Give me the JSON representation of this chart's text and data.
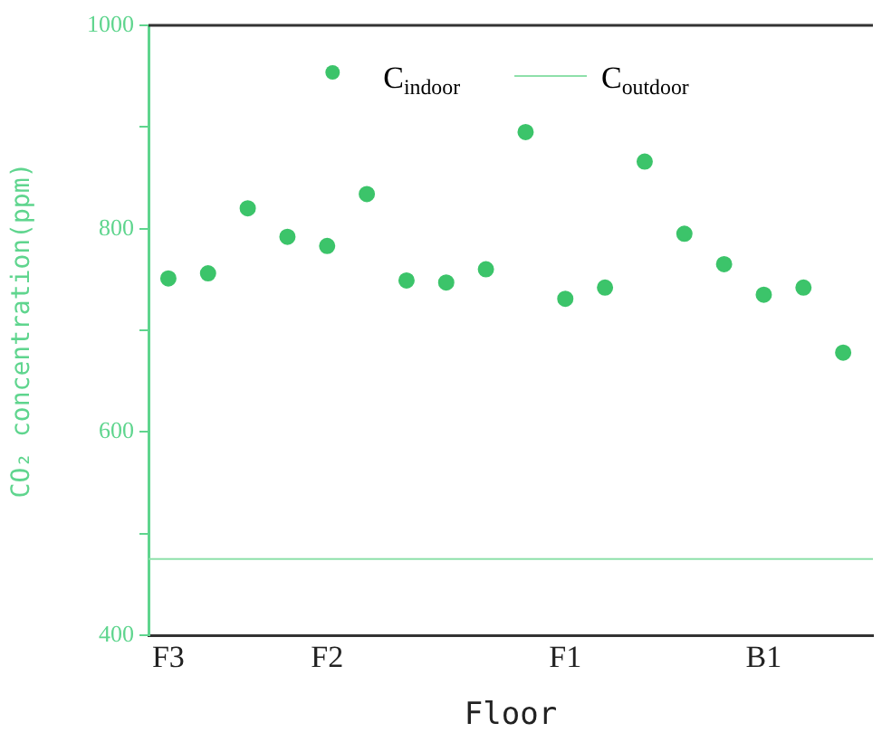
{
  "chart_data": {
    "type": "scatter",
    "xlabel": "Floor",
    "ylabel": "CO₂ concentration(ppm)",
    "categories": [
      "F3",
      null,
      null,
      null,
      "F2",
      null,
      null,
      null,
      null,
      null,
      "F1",
      null,
      null,
      null,
      null,
      "B1",
      null,
      null
    ],
    "series": [
      {
        "name": "C$_{indoor}$",
        "color": "#3cc46a",
        "values": [
          751,
          756,
          820,
          792,
          783,
          834,
          749,
          747,
          760,
          895,
          731,
          742,
          866,
          795,
          765,
          735,
          742,
          678
        ]
      }
    ],
    "ref_lines": [
      {
        "axis": "y",
        "value": 475,
        "label": "C$_{outdoor}$",
        "color": "#8ee0aa",
        "line_style": "solid"
      }
    ],
    "ylim": [
      400,
      1000
    ],
    "yticks": [
      400,
      {
        "value": 500,
        "label": null
      },
      600,
      {
        "value": 700,
        "label": null
      },
      800,
      {
        "value": 900,
        "label": null
      },
      1000
    ],
    "legend": "top",
    "marker": "circle"
  }
}
